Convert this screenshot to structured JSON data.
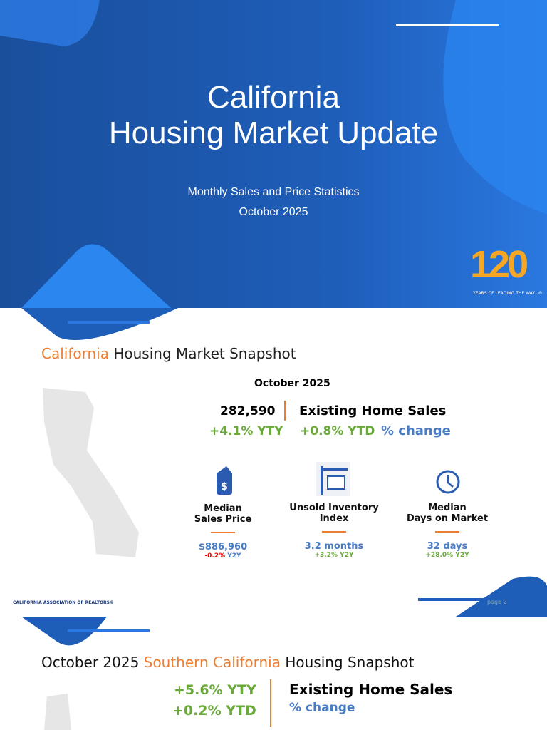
{
  "cover": {
    "title_lines": [
      "California",
      "Housing Market Update"
    ],
    "subtitle_lines": [
      "Monthly Sales and Price Statistics",
      "October 2025"
    ],
    "logo": {
      "number": "120",
      "tagline": "YEARS OF LEADING THE WAY...®"
    }
  },
  "snapshot": {
    "title": {
      "highlight": "California",
      "rest": "Housing Market Snapshot"
    },
    "period": "October 2025",
    "sales": {
      "value": "282,590",
      "label": "Existing Home Sales",
      "yty": "+4.1% YTY",
      "ytd": "+0.8% YTD",
      "change_label": "% change"
    },
    "metrics": [
      {
        "label_lines": [
          "Median",
          "Sales Price"
        ],
        "value": "$886,960",
        "change": "-0.2%",
        "change_label": "Y2Y"
      },
      {
        "label_lines": [
          "Unsold Inventory",
          "Index"
        ],
        "value": "3.2 months",
        "change": "+3.2%",
        "change_label": "Y2Y"
      },
      {
        "label_lines": [
          "Median",
          "Days on Market"
        ],
        "value": "32 days",
        "change": "+28.0%",
        "change_label": "Y2Y"
      }
    ],
    "footer": "CALIFORNIA ASSOCIATION OF REALTORS®",
    "page": "page 2"
  },
  "socal": {
    "title": {
      "before": "October 2025",
      "highlight": "Southern California",
      "after": "Housing Snapshot"
    },
    "yty": "+5.6% YTY",
    "ytd": "+0.2% YTD",
    "label": "Existing Home Sales",
    "change_label": "% change"
  }
}
